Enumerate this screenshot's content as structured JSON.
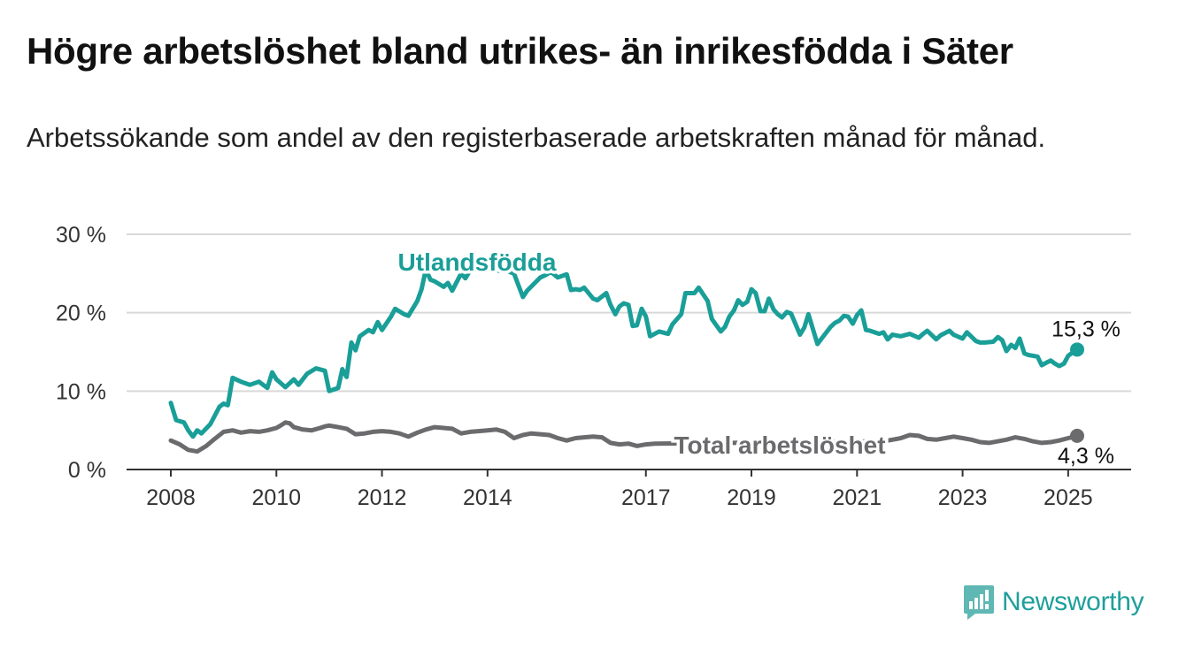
{
  "title": "Högre arbetslöshet bland utrikes- än inrikesfödda i Säter",
  "subtitle": "Arbetssökande som andel av den registerbaserade arbetskraften månad för månad.",
  "brand": {
    "name": "Newsworthy",
    "icon": "newsworthy-logo-icon"
  },
  "colors": {
    "utlandsfodda": "#1a9e98",
    "total": "#6b6b6e",
    "grid": "#d9d9d9",
    "axis": "#333333"
  },
  "chart_data": {
    "type": "line",
    "ylim": [
      0,
      30
    ],
    "xlim": [
      2008,
      2025.5
    ],
    "y_ticks": [
      0,
      10,
      20,
      30
    ],
    "y_tick_labels": [
      "0 %",
      "10 %",
      "20 %",
      "30 %"
    ],
    "x_ticks": [
      2008,
      2010,
      2012,
      2014,
      2017,
      2019,
      2021,
      2023,
      2025
    ],
    "x_tick_labels": [
      "2008",
      "2010",
      "2012",
      "2014",
      "2017",
      "2019",
      "2021",
      "2023",
      "2025"
    ],
    "grid": true,
    "series": [
      {
        "name": "Utlandsfödda",
        "color": "#1a9e98",
        "end_label": "15,3 %",
        "x": [
          2008.0,
          2008.1,
          2008.25,
          2008.33,
          2008.42,
          2008.5,
          2008.58,
          2008.75,
          2008.92,
          2009.0,
          2009.08,
          2009.17,
          2009.33,
          2009.5,
          2009.67,
          2009.83,
          2009.92,
          2010.0,
          2010.17,
          2010.33,
          2010.42,
          2010.58,
          2010.75,
          2010.92,
          2011.0,
          2011.17,
          2011.25,
          2011.33,
          2011.42,
          2011.5,
          2011.58,
          2011.75,
          2011.83,
          2011.92,
          2012.0,
          2012.17,
          2012.25,
          2012.42,
          2012.5,
          2012.67,
          2012.75,
          2012.83,
          2012.92,
          2013.0,
          2013.17,
          2013.25,
          2013.33,
          2013.5,
          2013.58,
          2013.67,
          2013.75,
          2014.17,
          2014.33,
          2014.42,
          2014.5,
          2014.67,
          2014.75,
          2015.0,
          2015.1,
          2015.2,
          2015.33,
          2015.5,
          2015.58,
          2015.67,
          2015.75,
          2015.83,
          2016.0,
          2016.08,
          2016.25,
          2016.33,
          2016.42,
          2016.5,
          2016.58,
          2016.67,
          2016.75,
          2016.83,
          2016.92,
          2017.0,
          2017.08,
          2017.25,
          2017.42,
          2017.5,
          2017.67,
          2017.75,
          2017.92,
          2018.0,
          2018.17,
          2018.25,
          2018.42,
          2018.5,
          2018.58,
          2018.67,
          2018.75,
          2018.83,
          2018.92,
          2019.0,
          2019.08,
          2019.17,
          2019.25,
          2019.33,
          2019.42,
          2019.5,
          2019.58,
          2019.67,
          2019.75,
          2019.92,
          2020.0,
          2020.08,
          2020.25,
          2020.33,
          2020.5,
          2020.58,
          2020.67,
          2020.75,
          2020.83,
          2020.92,
          2021.0,
          2021.08,
          2021.17,
          2021.25,
          2021.42,
          2021.5,
          2021.58,
          2021.67,
          2021.75,
          2021.83,
          2022.0,
          2022.17,
          2022.25,
          2022.33,
          2022.5,
          2022.58,
          2022.75,
          2022.83,
          2023.0,
          2023.08,
          2023.25,
          2023.33,
          2023.42,
          2023.58,
          2023.67,
          2023.75,
          2023.83,
          2023.92,
          2024.0,
          2024.08,
          2024.17,
          2024.25,
          2024.42,
          2024.5,
          2024.58,
          2024.67,
          2024.75,
          2024.83,
          2024.92,
          2025.0,
          2025.08,
          2025.17
        ],
        "y": [
          8.5,
          6.3,
          6.0,
          5.0,
          4.2,
          5.0,
          4.6,
          5.8,
          8.0,
          8.4,
          8.2,
          11.7,
          11.2,
          10.8,
          11.2,
          10.4,
          12.4,
          11.5,
          10.5,
          11.5,
          10.8,
          12.2,
          12.9,
          12.6,
          10.0,
          10.4,
          12.8,
          11.8,
          16.2,
          15.2,
          17.0,
          17.8,
          17.5,
          18.8,
          17.8,
          19.5,
          20.5,
          19.8,
          19.6,
          21.5,
          23.0,
          25.5,
          24.2,
          24.0,
          23.3,
          23.8,
          22.8,
          25.0,
          24.4,
          25.4,
          25.6,
          25.3,
          25.6,
          25.2,
          25.0,
          22.0,
          22.8,
          24.5,
          24.8,
          25.2,
          24.5,
          24.9,
          22.9,
          23.0,
          22.9,
          23.2,
          21.8,
          21.6,
          22.5,
          21.0,
          19.8,
          20.8,
          21.2,
          21.0,
          18.3,
          18.4,
          20.5,
          19.5,
          17.0,
          17.6,
          17.3,
          18.5,
          19.8,
          22.5,
          22.5,
          23.2,
          21.5,
          19.2,
          17.6,
          18.2,
          19.5,
          20.3,
          21.6,
          21.0,
          21.4,
          23.0,
          22.5,
          20.2,
          20.2,
          21.8,
          20.4,
          19.8,
          19.4,
          20.1,
          19.9,
          17.2,
          18.1,
          19.8,
          16.0,
          16.7,
          18.2,
          18.7,
          19.0,
          19.6,
          19.5,
          18.6,
          19.7,
          20.3,
          17.8,
          17.7,
          17.3,
          17.5,
          16.6,
          17.2,
          17.1,
          17.0,
          17.3,
          16.8,
          17.3,
          17.7,
          16.6,
          17.1,
          17.7,
          17.2,
          16.7,
          17.5,
          16.4,
          16.2,
          16.2,
          16.3,
          16.9,
          16.5,
          15.1,
          15.9,
          15.5,
          16.7,
          14.8,
          14.6,
          14.4,
          13.3,
          13.6,
          13.9,
          13.5,
          13.2,
          13.5,
          14.5,
          14.9,
          15.3
        ]
      },
      {
        "name": "Total arbetslöshet",
        "color": "#6b6b6e",
        "end_label": "4,3 %",
        "x": [
          2008.0,
          2008.17,
          2008.33,
          2008.5,
          2008.67,
          2008.83,
          2009.0,
          2009.17,
          2009.33,
          2009.5,
          2009.67,
          2009.83,
          2010.0,
          2010.08,
          2010.17,
          2010.25,
          2010.33,
          2010.5,
          2010.67,
          2010.83,
          2010.92,
          2011.0,
          2011.17,
          2011.33,
          2011.5,
          2011.67,
          2011.83,
          2012.0,
          2012.17,
          2012.33,
          2012.5,
          2012.67,
          2012.83,
          2013.0,
          2013.17,
          2013.33,
          2013.5,
          2013.67,
          2013.83,
          2014.0,
          2014.17,
          2014.33,
          2014.5,
          2014.67,
          2014.83,
          2015.0,
          2015.17,
          2015.33,
          2015.5,
          2015.67,
          2015.83,
          2016.0,
          2016.17,
          2016.33,
          2016.5,
          2016.67,
          2016.83,
          2017.0,
          2017.17,
          2021.5,
          2021.67,
          2021.83,
          2022.0,
          2022.17,
          2022.33,
          2022.5,
          2022.67,
          2022.83,
          2023.0,
          2023.17,
          2023.33,
          2023.5,
          2023.67,
          2023.83,
          2024.0,
          2024.17,
          2024.33,
          2024.5,
          2024.67,
          2024.83,
          2025.0,
          2025.17
        ],
        "y": [
          3.7,
          3.2,
          2.5,
          2.3,
          3.0,
          3.9,
          4.8,
          5.0,
          4.7,
          4.9,
          4.8,
          5.0,
          5.3,
          5.6,
          6.0,
          5.9,
          5.4,
          5.1,
          5.0,
          5.3,
          5.5,
          5.6,
          5.4,
          5.2,
          4.5,
          4.6,
          4.8,
          4.9,
          4.8,
          4.6,
          4.2,
          4.7,
          5.1,
          5.4,
          5.3,
          5.2,
          4.6,
          4.8,
          4.9,
          5.0,
          5.1,
          4.8,
          4.0,
          4.4,
          4.6,
          4.5,
          4.4,
          4.0,
          3.7,
          4.0,
          4.1,
          4.2,
          4.1,
          3.4,
          3.2,
          3.3,
          3.0,
          3.2,
          3.3,
          3.6,
          3.8,
          4.0,
          4.4,
          4.3,
          3.9,
          3.8,
          4.0,
          4.2,
          4.0,
          3.8,
          3.5,
          3.4,
          3.6,
          3.8,
          4.1,
          3.9,
          3.6,
          3.4,
          3.5,
          3.7,
          4.0,
          4.3
        ]
      }
    ],
    "annotations": [
      {
        "text": "Utlandsfödda",
        "series": 0
      },
      {
        "text": "Total arbetslöshet",
        "series": 1
      }
    ]
  }
}
